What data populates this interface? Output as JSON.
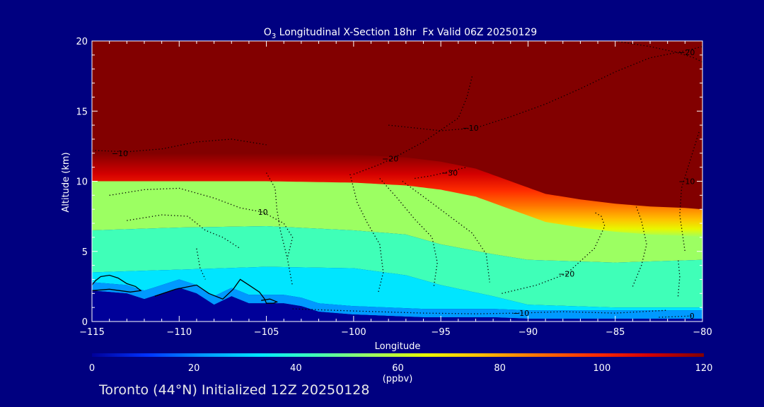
{
  "chart_data": {
    "type": "heatmap",
    "title": {
      "species_base": "O",
      "species_subscript": "3",
      "text": " Longitudinal X-Section 18hr  Fx Valid 06Z 20250129"
    },
    "xlabel": "Longitude",
    "ylabel": "Altitude (km)",
    "xlim": [
      -115,
      -80
    ],
    "ylim": [
      0,
      20
    ],
    "x_ticks": [
      -115,
      -110,
      -105,
      -100,
      -95,
      -90,
      -85,
      -80
    ],
    "x_tick_labels": [
      "−115",
      "−110",
      "−105",
      "−100",
      "−95",
      "−90",
      "−85",
      "−80"
    ],
    "y_ticks": [
      0,
      5,
      10,
      15,
      20
    ],
    "y_tick_labels": [
      "0",
      "5",
      "10",
      "15",
      "20"
    ],
    "colorbar": {
      "min": 0,
      "max": 120,
      "ticks": [
        0,
        20,
        40,
        60,
        80,
        100,
        120
      ],
      "tick_labels": [
        "0",
        "20",
        "40",
        "60",
        "80",
        "100",
        "120"
      ],
      "unit_label": "(ppbv)",
      "colormap": [
        "#000099",
        "#0033ff",
        "#0099ff",
        "#00e5ff",
        "#3fffb8",
        "#9cff62",
        "#e8f700",
        "#ffbe00",
        "#ff7300",
        "#ff2e00",
        "#d40000",
        "#820000"
      ]
    },
    "tropopause_altitude_km": {
      "x": [
        -115,
        -110,
        -105,
        -100,
        -97,
        -95,
        -93,
        -91,
        -89,
        -87,
        -85,
        -83,
        -81,
        -80
      ],
      "y": [
        11.6,
        11.6,
        11.6,
        11.5,
        11.3,
        11.0,
        10.5,
        9.6,
        8.7,
        8.3,
        8.0,
        7.8,
        7.7,
        7.6
      ]
    },
    "mid_layer": {
      "x": [
        -115,
        -110,
        -105,
        -100,
        -97,
        -95,
        -92,
        -90,
        -85,
        -80
      ],
      "upper_km": [
        6.5,
        6.7,
        6.8,
        6.5,
        6.2,
        5.5,
        4.8,
        4.4,
        4.2,
        4.4
      ],
      "lower_km": [
        3.5,
        3.7,
        3.9,
        3.8,
        3.3,
        2.6,
        1.8,
        1.2,
        1.0,
        1.0
      ]
    },
    "surface_km": {
      "x": [
        -115,
        -113,
        -112,
        -111,
        -110,
        -109,
        -108,
        -107,
        -106,
        -105,
        -104,
        -103,
        -102,
        -100,
        -98,
        -96,
        -94,
        -92,
        -90,
        -88,
        -86,
        -84,
        -82,
        -80
      ],
      "y": [
        2.2,
        2.0,
        1.6,
        2.0,
        2.4,
        2.0,
        1.2,
        1.8,
        1.3,
        1.3,
        1.3,
        1.1,
        0.7,
        0.5,
        0.4,
        0.3,
        0.3,
        0.3,
        0.2,
        0.2,
        0.2,
        0.2,
        0.2,
        0.2
      ]
    },
    "contours": [
      {
        "label": "−10",
        "label_at": [
          -113.4,
          12.0
        ],
        "x": [
          -115,
          -113,
          -111,
          -109,
          -107,
          -105
        ],
        "y": [
          12.2,
          12.1,
          12.3,
          12.8,
          13.0,
          12.6
        ]
      },
      {
        "label": "−20",
        "label_at": [
          -97.9,
          11.6
        ],
        "x": [
          -100,
          -98.5,
          -97.5,
          -96,
          -94,
          -93.5,
          -93.2
        ],
        "y": [
          10.5,
          11.2,
          11.8,
          12.8,
          14.5,
          16.0,
          17.5
        ]
      },
      {
        "label": "−30",
        "label_at": [
          -94.5,
          10.6
        ],
        "x": [
          -96.5,
          -95.5,
          -94.5,
          -93.5
        ],
        "y": [
          10.2,
          10.4,
          10.7,
          11.0
        ]
      },
      {
        "label": "−10",
        "label_at": [
          -93.3,
          13.8
        ],
        "x": [
          -98,
          -95,
          -93,
          -91,
          -89,
          -87,
          -85,
          -83,
          -81,
          -80
        ],
        "y": [
          14.0,
          13.6,
          13.8,
          14.6,
          15.5,
          16.6,
          17.8,
          18.8,
          19.3,
          19.6
        ]
      },
      {
        "label": "−20",
        "label_at": [
          -80.9,
          19.2
        ],
        "x": [
          -85,
          -83,
          -81.5,
          -80.5,
          -80
        ],
        "y": [
          20.0,
          19.6,
          19.2,
          18.8,
          18.5
        ]
      },
      {
        "label": "−10",
        "label_at": [
          -80.9,
          10.0
        ],
        "x": [
          -80.2,
          -80.7,
          -81.2,
          -81.3,
          -81.0
        ],
        "y": [
          13.5,
          11.5,
          9.5,
          7.6,
          5.0
        ]
      },
      {
        "label": "10",
        "label_at": [
          -105.2,
          7.8
        ],
        "x": [
          -114,
          -112,
          -110,
          -108,
          -106.5,
          -105.2,
          -104,
          -103.5,
          -103.8
        ],
        "y": [
          9.0,
          9.4,
          9.5,
          8.8,
          8.1,
          7.8,
          7.0,
          6.0,
          4.5
        ]
      },
      {
        "label": "",
        "label_at": null,
        "x": [
          -105,
          -104.5,
          -104.4,
          -104.2,
          -103.8,
          -103.5
        ],
        "y": [
          10.6,
          9.5,
          8.0,
          6.5,
          4.5,
          2.5
        ]
      },
      {
        "label": "",
        "label_at": null,
        "x": [
          -100.2,
          -99.8,
          -99.2,
          -98.5,
          -98.3,
          -98.6
        ],
        "y": [
          10.5,
          8.5,
          7.0,
          5.5,
          3.5,
          2.0
        ]
      },
      {
        "label": "",
        "label_at": null,
        "x": [
          -98.5,
          -97.5,
          -96.5,
          -95.5,
          -95.2,
          -95.4
        ],
        "y": [
          10.2,
          8.8,
          7.3,
          6.0,
          4.2,
          2.5
        ]
      },
      {
        "label": "",
        "label_at": null,
        "x": [
          -97.2,
          -96.0,
          -94.6,
          -93.2,
          -92.4,
          -92.2
        ],
        "y": [
          10.0,
          8.9,
          7.6,
          6.3,
          4.8,
          2.8
        ]
      },
      {
        "label": "−20",
        "label_at": [
          -87.8,
          3.4
        ],
        "x": [
          -91.5,
          -89.5,
          -87.8,
          -86.2,
          -85.6,
          -85.8,
          -86.2
        ],
        "y": [
          2.0,
          2.6,
          3.4,
          5.2,
          6.8,
          7.5,
          7.8
        ]
      },
      {
        "label": "",
        "label_at": null,
        "x": [
          -84.0,
          -83.5,
          -83.2,
          -83.5,
          -83.8
        ],
        "y": [
          2.5,
          4.0,
          5.5,
          7.2,
          8.2
        ]
      },
      {
        "label": "",
        "label_at": null,
        "x": [
          -81.4,
          -81.3,
          -81.4
        ],
        "y": [
          1.8,
          3.2,
          4.5
        ]
      },
      {
        "label": "−10",
        "label_at": [
          -90.4,
          0.6
        ],
        "x": [
          -103.5,
          -100,
          -96,
          -93,
          -90.5,
          -88,
          -85,
          -82
        ],
        "y": [
          0.9,
          0.75,
          0.6,
          0.55,
          0.6,
          0.7,
          0.6,
          0.8
        ]
      },
      {
        "label": "0",
        "label_at": [
          -80.6,
          0.4
        ],
        "x": [
          -82.5,
          -81.5,
          -80.6
        ],
        "y": [
          0.3,
          0.35,
          0.4
        ]
      },
      {
        "label": "",
        "label_at": null,
        "x": [
          -113,
          -111,
          -109.5,
          -108.5,
          -107.5,
          -106.5
        ],
        "y": [
          7.2,
          7.6,
          7.5,
          6.5,
          6.0,
          5.2
        ]
      },
      {
        "label": "",
        "label_at": null,
        "x": [
          -109.0,
          -108.8,
          -108.5
        ],
        "y": [
          5.2,
          3.8,
          3.0
        ]
      }
    ],
    "solid_contours": [
      {
        "x": [
          -115,
          -114.8,
          -114.5,
          -114.0,
          -113.5,
          -113.0,
          -112.5,
          -112.2,
          -112.8,
          -114.0,
          -115
        ],
        "y": [
          2.6,
          2.9,
          3.2,
          3.3,
          3.1,
          2.7,
          2.5,
          2.2,
          2.1,
          2.3,
          2.2
        ]
      },
      {
        "x": [
          -111.4,
          -110.2,
          -109.0,
          -108.3,
          -107.5,
          -106.9,
          -106.5,
          -106.0,
          -105.4,
          -105.1,
          -105.0,
          -104.6,
          -104.4,
          -104.8,
          -105.3
        ],
        "y": [
          1.8,
          2.3,
          2.6,
          2.0,
          1.6,
          2.3,
          3.0,
          2.6,
          2.1,
          1.6,
          1.3,
          1.3,
          1.4,
          1.6,
          1.5
        ]
      }
    ]
  },
  "footer": {
    "text": "Toronto (44°N) Initialized 12Z 20250128"
  }
}
